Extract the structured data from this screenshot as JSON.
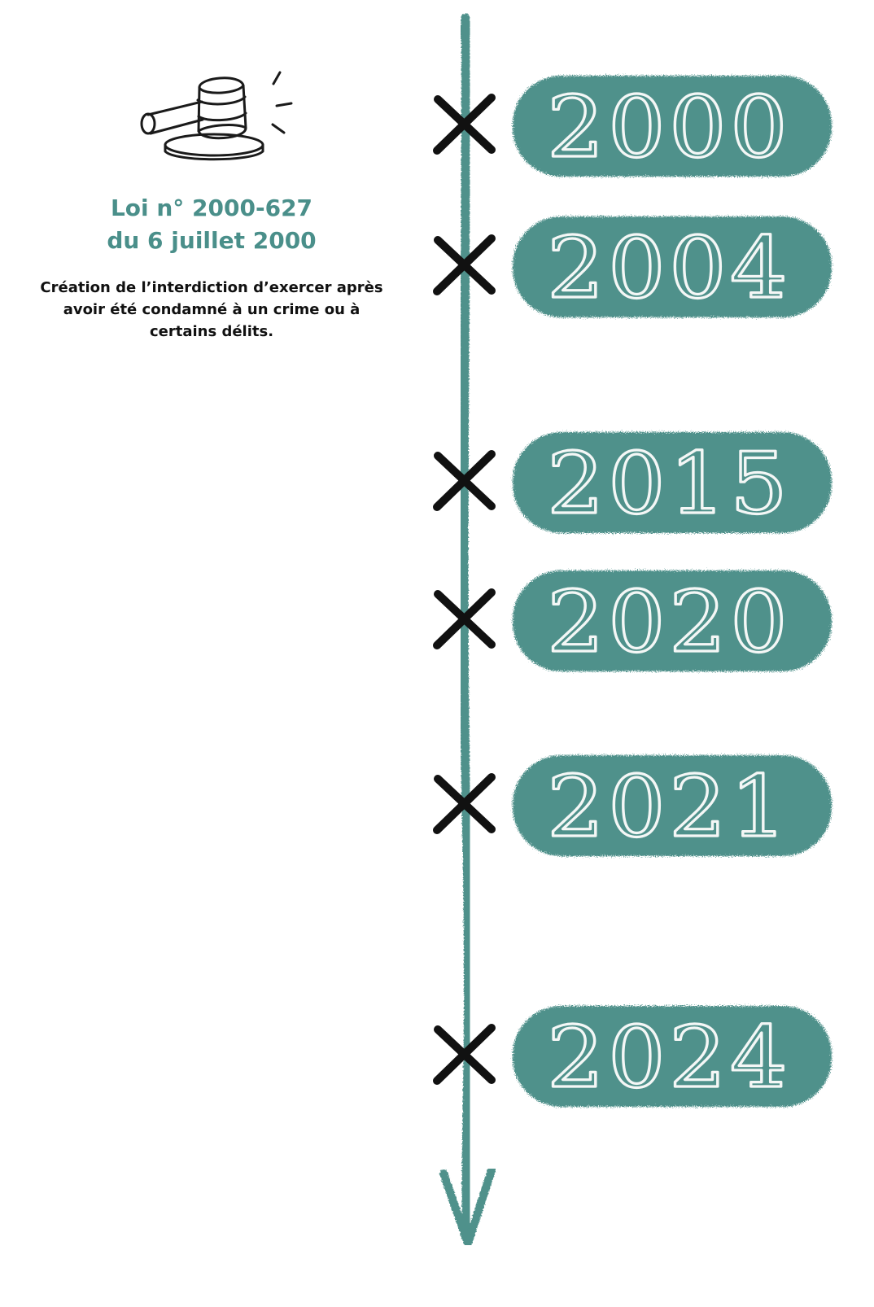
{
  "law": {
    "icon": "gavel-icon",
    "title_line1": "Loi n° 2000-627",
    "title_line2": "du 6 juillet 2000",
    "description": "Création de l’interdiction d’exercer après avoir été condamné à un crime ou à certains délits."
  },
  "timeline": {
    "years": [
      "2000",
      "2004",
      "2015",
      "2020",
      "2021",
      "2024"
    ],
    "marker_icon": "cross-marker-icon",
    "arrow_icon": "arrow-down-icon"
  },
  "colors": {
    "teal": "#4f918b",
    "title_teal": "#4a8f8a",
    "ink": "#111111",
    "chalk": "#f4f7f6"
  }
}
